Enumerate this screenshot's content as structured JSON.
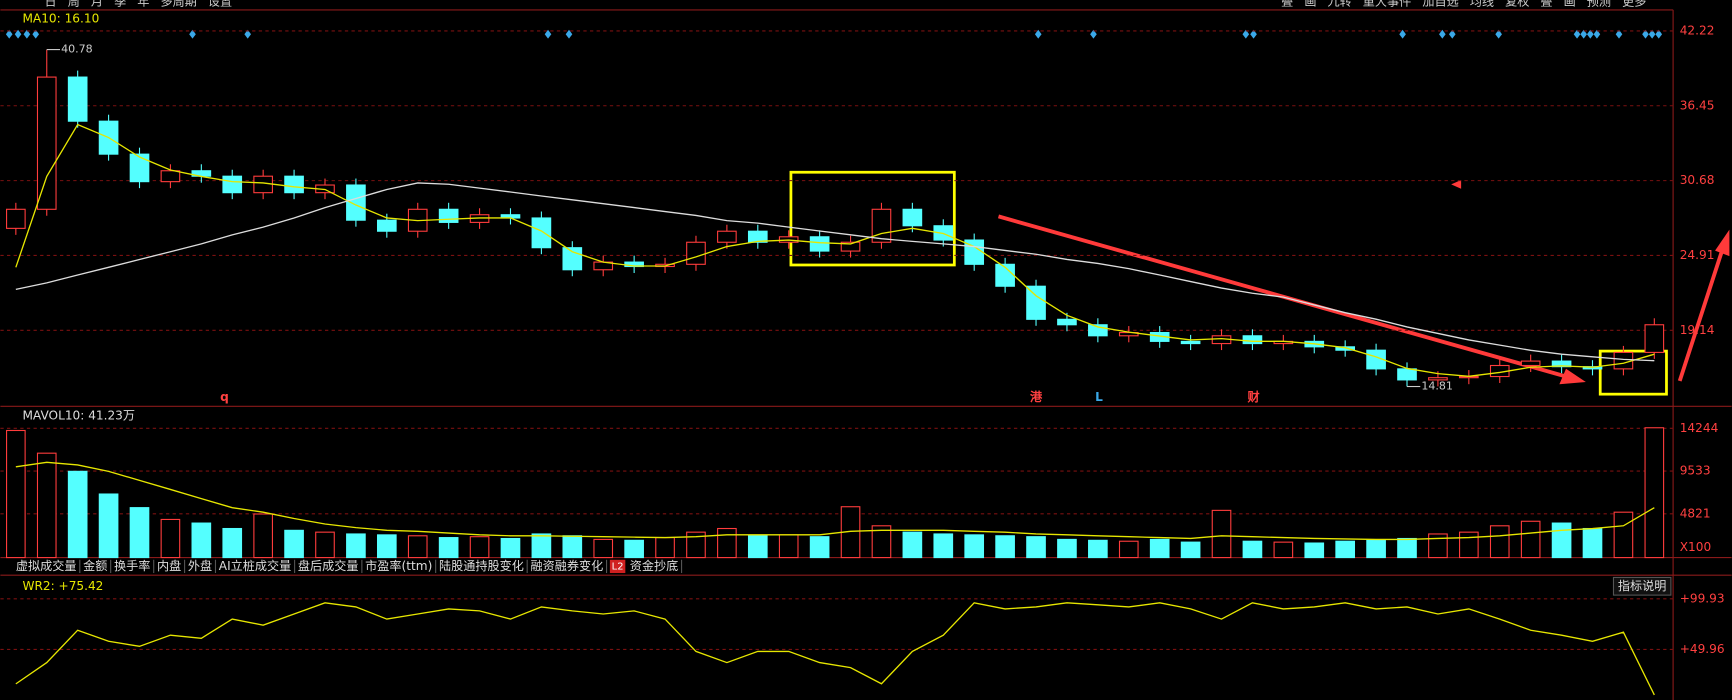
{
  "toolbar": {
    "left": [
      "日",
      "周",
      "月",
      "季",
      "年",
      "多周期",
      "设置"
    ],
    "right": [
      "叠",
      "画",
      "九转",
      "重大事件",
      "加自选",
      "均线",
      "复权",
      "叠",
      "画",
      "预测",
      "更多"
    ]
  },
  "chart_data": [
    {
      "type": "candlestick",
      "legend": "MA10: 16.10",
      "ylim": [
        13.37,
        43.75
      ],
      "yticks": [
        19.14,
        24.91,
        30.68,
        36.45,
        42.22
      ],
      "categories": [
        null,
        null,
        null,
        null,
        null,
        null,
        null,
        null,
        null,
        null,
        null,
        null,
        null,
        null,
        null,
        null,
        null,
        null,
        null,
        null,
        null,
        null,
        null,
        null,
        null,
        null,
        null,
        null,
        null,
        null,
        null,
        null,
        null,
        null,
        null,
        null,
        null,
        null,
        null,
        null,
        null,
        null,
        null,
        null,
        null,
        null,
        null,
        null,
        null,
        null,
        null,
        null,
        null,
        null
      ],
      "open": [
        27.0,
        28.47,
        38.66,
        35.26,
        32.72,
        30.6,
        31.44,
        31.02,
        29.75,
        31.02,
        29.75,
        30.34,
        27.63,
        26.78,
        28.47,
        27.46,
        28.05,
        27.8,
        25.51,
        23.81,
        24.4,
        24.06,
        24.23,
        25.93,
        26.78,
        25.93,
        26.35,
        25.25,
        25.93,
        28.47,
        27.2,
        26.1,
        24.23,
        22.54,
        19.99,
        19.57,
        18.72,
        18.97,
        18.29,
        18.12,
        18.72,
        18.12,
        18.29,
        17.87,
        17.61,
        16.17,
        15.32,
        15.49,
        15.58,
        16.43,
        16.77,
        16.34,
        16.17,
        17.44
      ],
      "high": [
        28.97,
        40.78,
        39.16,
        35.76,
        33.22,
        31.94,
        31.94,
        31.52,
        31.52,
        31.52,
        30.84,
        30.84,
        28.13,
        28.97,
        28.97,
        28.55,
        28.55,
        28.3,
        26.01,
        24.9,
        24.9,
        24.73,
        26.43,
        27.28,
        27.28,
        26.85,
        26.85,
        26.43,
        28.97,
        28.97,
        27.7,
        26.6,
        24.73,
        23.04,
        20.49,
        20.07,
        19.47,
        19.47,
        18.79,
        19.22,
        19.22,
        18.79,
        18.79,
        18.37,
        18.11,
        16.67,
        15.99,
        16.08,
        16.93,
        17.27,
        17.27,
        16.84,
        17.94,
        20.07
      ],
      "low": [
        26.5,
        27.97,
        34.76,
        32.22,
        30.1,
        30.1,
        30.52,
        29.25,
        29.25,
        29.25,
        29.25,
        27.13,
        26.28,
        26.28,
        26.96,
        26.96,
        27.3,
        25.01,
        23.31,
        23.31,
        23.56,
        23.56,
        23.73,
        25.43,
        25.43,
        25.43,
        24.75,
        24.75,
        25.43,
        26.7,
        25.6,
        23.73,
        22.04,
        19.49,
        19.07,
        18.22,
        18.22,
        17.79,
        17.62,
        17.62,
        17.62,
        17.62,
        17.37,
        17.11,
        15.67,
        14.81,
        14.82,
        14.99,
        15.08,
        15.93,
        15.84,
        15.67,
        15.67,
        16.94
      ],
      "close": [
        28.47,
        38.66,
        35.26,
        32.72,
        30.6,
        31.44,
        31.02,
        29.75,
        31.02,
        29.75,
        30.34,
        27.63,
        26.78,
        28.47,
        27.46,
        28.05,
        27.8,
        25.51,
        23.81,
        24.4,
        24.06,
        24.23,
        25.93,
        26.78,
        25.93,
        26.35,
        25.25,
        25.93,
        28.47,
        27.2,
        26.1,
        24.23,
        22.54,
        19.99,
        19.57,
        18.72,
        18.97,
        18.29,
        18.12,
        18.72,
        18.12,
        18.29,
        17.87,
        17.61,
        16.17,
        15.32,
        15.49,
        15.58,
        16.43,
        16.77,
        16.34,
        16.17,
        17.44,
        19.57
      ],
      "up_color": "#ff3c3c",
      "down_color": "#54ffff",
      "lines": [
        {
          "color": "#e6e600",
          "values": [
            24.0,
            31.0,
            35.0,
            34.0,
            32.5,
            31.5,
            31.0,
            30.6,
            30.5,
            30.2,
            30.0,
            28.8,
            27.8,
            27.6,
            27.7,
            27.8,
            27.8,
            26.8,
            25.2,
            24.4,
            24.1,
            24.1,
            24.8,
            25.6,
            26.0,
            26.1,
            25.9,
            25.8,
            26.6,
            27.0,
            26.6,
            25.6,
            24.0,
            21.8,
            20.3,
            19.4,
            19.0,
            18.7,
            18.4,
            18.5,
            18.3,
            18.3,
            18.1,
            17.8,
            17.1,
            16.2,
            15.8,
            15.6,
            15.9,
            16.3,
            16.4,
            16.3,
            16.6,
            17.3
          ]
        },
        {
          "color": "#dcdcdc",
          "values": [
            22.3,
            22.8,
            23.4,
            24.0,
            24.6,
            25.2,
            25.8,
            26.5,
            27.1,
            27.8,
            28.6,
            29.3,
            30.0,
            30.5,
            30.4,
            30.1,
            29.8,
            29.5,
            29.2,
            28.9,
            28.6,
            28.3,
            28.0,
            27.6,
            27.4,
            27.1,
            26.8,
            26.5,
            26.2,
            26.0,
            25.8,
            25.6,
            25.3,
            25.0,
            24.6,
            24.3,
            23.9,
            23.4,
            22.9,
            22.4,
            22.0,
            21.7,
            21.1,
            20.5,
            20.0,
            19.4,
            18.9,
            18.4,
            18.0,
            17.6,
            17.3,
            17.1,
            16.9,
            16.8
          ]
        }
      ],
      "annotations": [
        {
          "value": 40.78
        },
        {
          "value": 14.81
        }
      ],
      "markers": [
        "q",
        "港",
        "L",
        "财"
      ]
    },
    {
      "type": "bar",
      "legend": "MAVOL10: 41.23万",
      "ylim": [
        0,
        16177
      ],
      "yticks": [
        4821,
        9533,
        14244
      ],
      "unit_label": "X100",
      "values": [
        14000,
        11500,
        9500,
        7000,
        5500,
        4200,
        3800,
        3200,
        4800,
        3000,
        2800,
        2600,
        2500,
        2400,
        2200,
        2300,
        2100,
        2600,
        2400,
        2000,
        1900,
        2200,
        2800,
        3200,
        2400,
        2500,
        2300,
        5600,
        3500,
        2800,
        2600,
        2500,
        2400,
        2300,
        2000,
        1900,
        1800,
        2000,
        1700,
        5200,
        1800,
        1700,
        1600,
        1800,
        1900,
        2100,
        2600,
        2800,
        3500,
        4000,
        3800,
        3200,
        5000,
        14300
      ],
      "lines": [
        {
          "color": "#e6e600",
          "values": [
            10000,
            10500,
            10200,
            9500,
            8500,
            7500,
            6500,
            5500,
            5000,
            4300,
            3700,
            3300,
            3000,
            2900,
            2700,
            2500,
            2400,
            2400,
            2350,
            2300,
            2250,
            2200,
            2300,
            2500,
            2500,
            2500,
            2500,
            2900,
            3000,
            3000,
            3000,
            2900,
            2800,
            2600,
            2500,
            2400,
            2300,
            2200,
            2100,
            2400,
            2300,
            2200,
            2100,
            2050,
            2000,
            2000,
            2100,
            2200,
            2400,
            2700,
            3000,
            3200,
            3500,
            5500
          ]
        }
      ]
    },
    {
      "type": "line",
      "legend": "WR2: +75.42",
      "ylim": [
        0,
        120
      ],
      "yticks": [
        {
          "value": 49.96,
          "label": "+49.96"
        },
        {
          "value": 99.93,
          "label": "+99.93"
        }
      ],
      "series": [
        {
          "color": "#e6e600",
          "values": [
            15.9,
            37,
            69,
            58,
            53,
            64,
            61,
            80,
            74,
            85,
            96,
            92,
            80,
            85,
            90,
            88,
            80,
            92,
            88,
            85,
            88,
            80,
            48,
            37,
            48,
            48,
            37,
            32,
            16,
            48,
            64,
            96,
            90,
            92,
            96,
            94,
            92,
            96,
            90,
            80,
            96,
            90,
            92,
            96,
            90,
            92,
            85,
            90,
            80,
            69,
            64,
            58,
            67,
            5
          ]
        }
      ]
    }
  ],
  "tabs": [
    "虚拟成交量",
    "金额",
    "换手率",
    "内盘",
    "外盘",
    "AI立桩成交量",
    "盘后成交量",
    "市盈率(ttm)",
    "陆股通持股变化",
    "融资融券变化",
    "资金抄底"
  ],
  "tab_badge": "L2",
  "button": "指标说明"
}
